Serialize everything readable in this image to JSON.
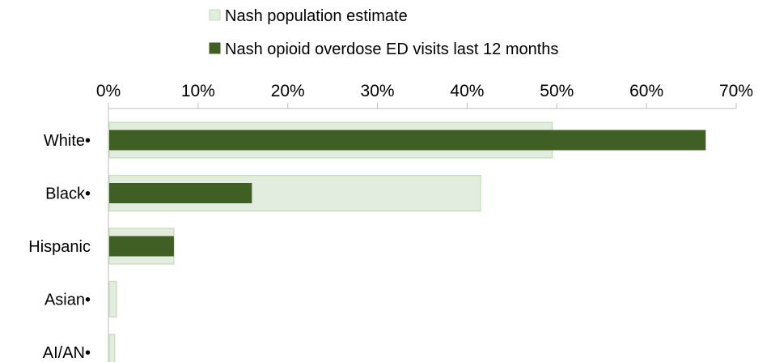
{
  "chart_data": {
    "type": "bar",
    "orientation": "horizontal",
    "categories": [
      "White•",
      "Black•",
      "Hispanic",
      "Asian•",
      "AI/AN•"
    ],
    "series": [
      {
        "name": "Nash population estimate",
        "values": [
          49.5,
          41.5,
          7.3,
          0.9,
          0.7
        ],
        "color": "#e2ecdf",
        "border": "#c5dcb5"
      },
      {
        "name": "Nash opioid overdose ED visits last 12 months",
        "values": [
          66.6,
          16.0,
          7.3,
          0,
          0
        ],
        "color": "#3f5f24"
      }
    ],
    "xlim": [
      0,
      70
    ],
    "xticks": [
      "0%",
      "10%",
      "20%",
      "30%",
      "40%",
      "50%",
      "60%",
      "70%"
    ],
    "tick_step": 10,
    "legend_position": "top",
    "grid": false
  }
}
